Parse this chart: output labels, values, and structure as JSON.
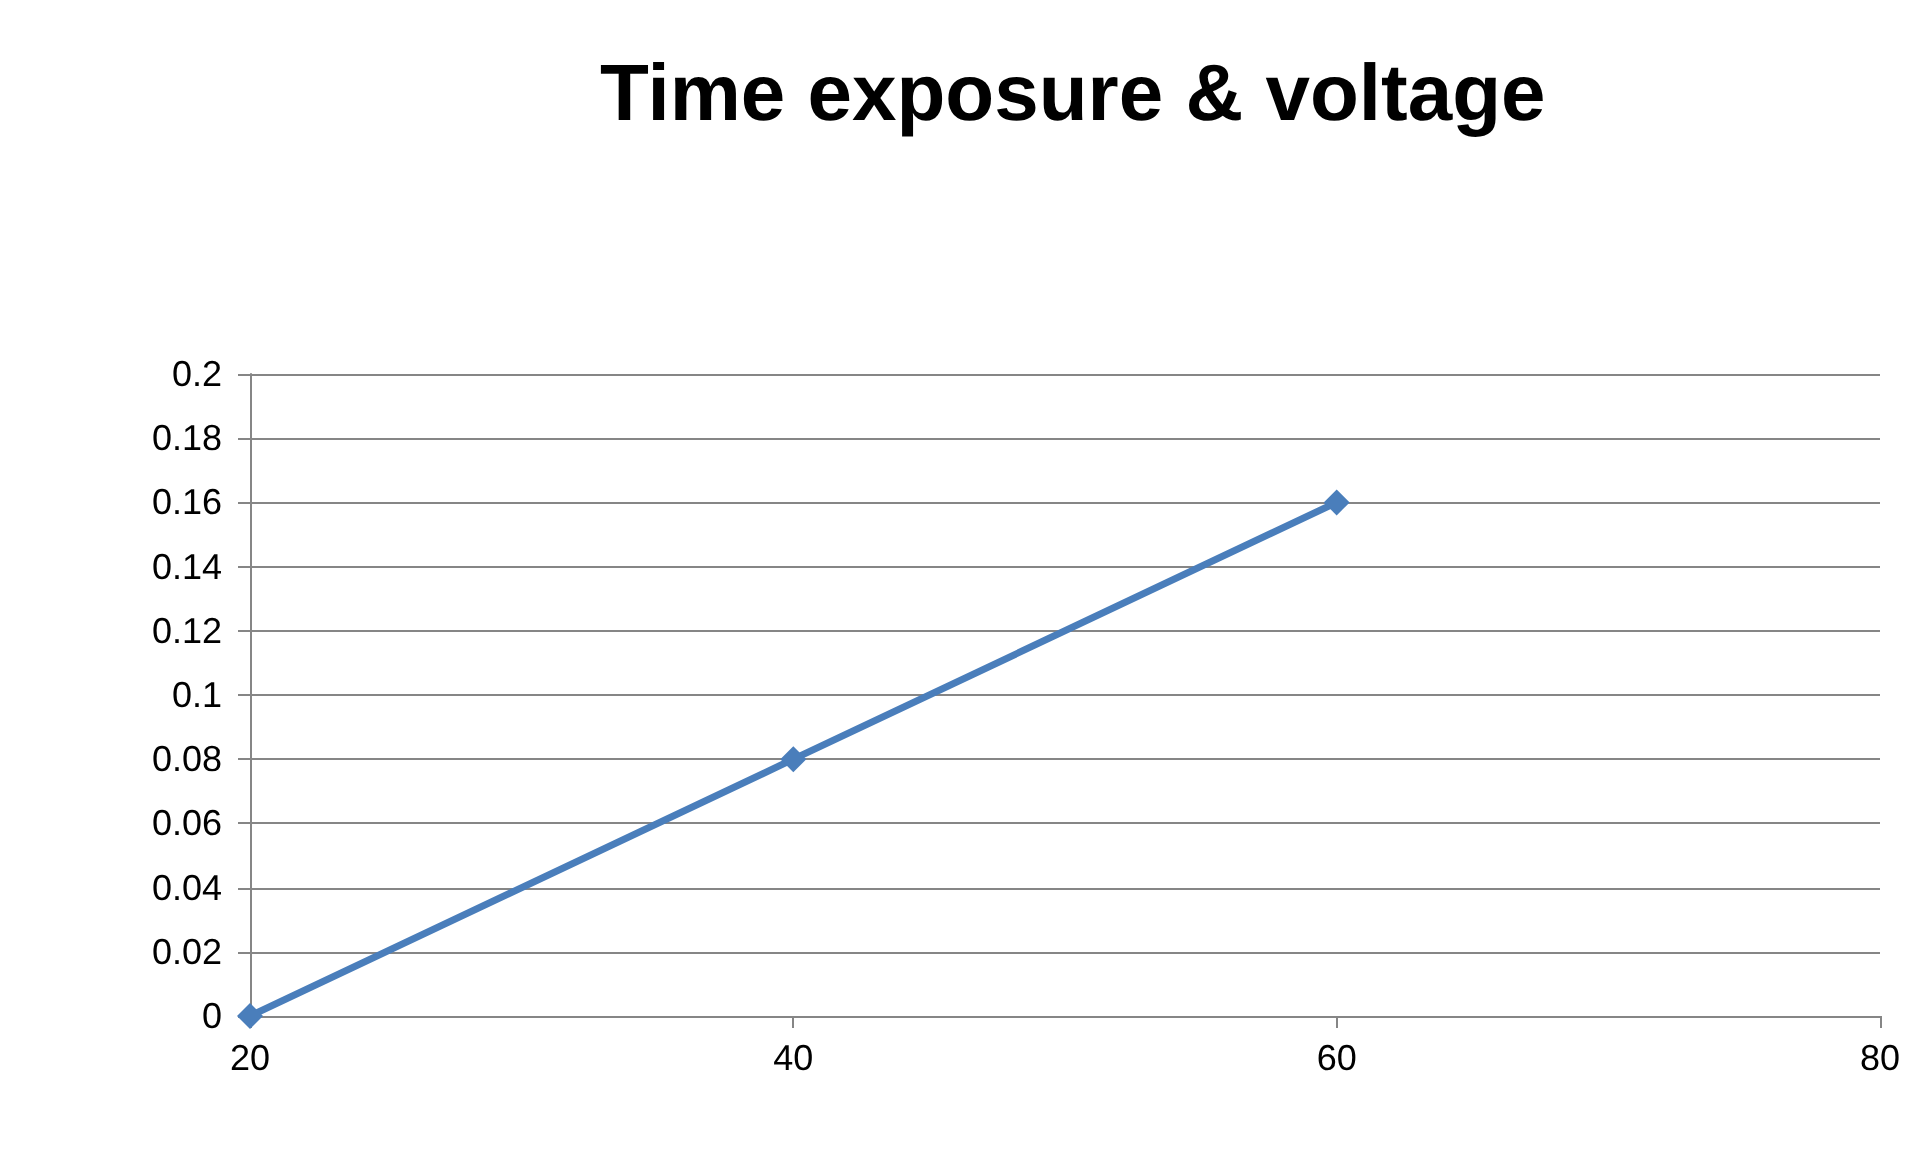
{
  "chart_data": {
    "type": "line",
    "title": "Time exposure & voltage",
    "x": [
      20,
      40,
      60
    ],
    "series": [
      {
        "color": "#4a7ebb",
        "values": [
          0,
          0.08,
          0.16
        ]
      }
    ],
    "xlim": [
      20,
      80
    ],
    "xticks": [
      20,
      40,
      60,
      80
    ],
    "ylim": [
      0,
      0.2
    ],
    "yticks": [
      0,
      0.02,
      0.04,
      0.06,
      0.08,
      0.1,
      0.12,
      0.14,
      0.16,
      0.18,
      0.2
    ],
    "grid": "y",
    "marker": "diamond",
    "line_style": "solid"
  }
}
